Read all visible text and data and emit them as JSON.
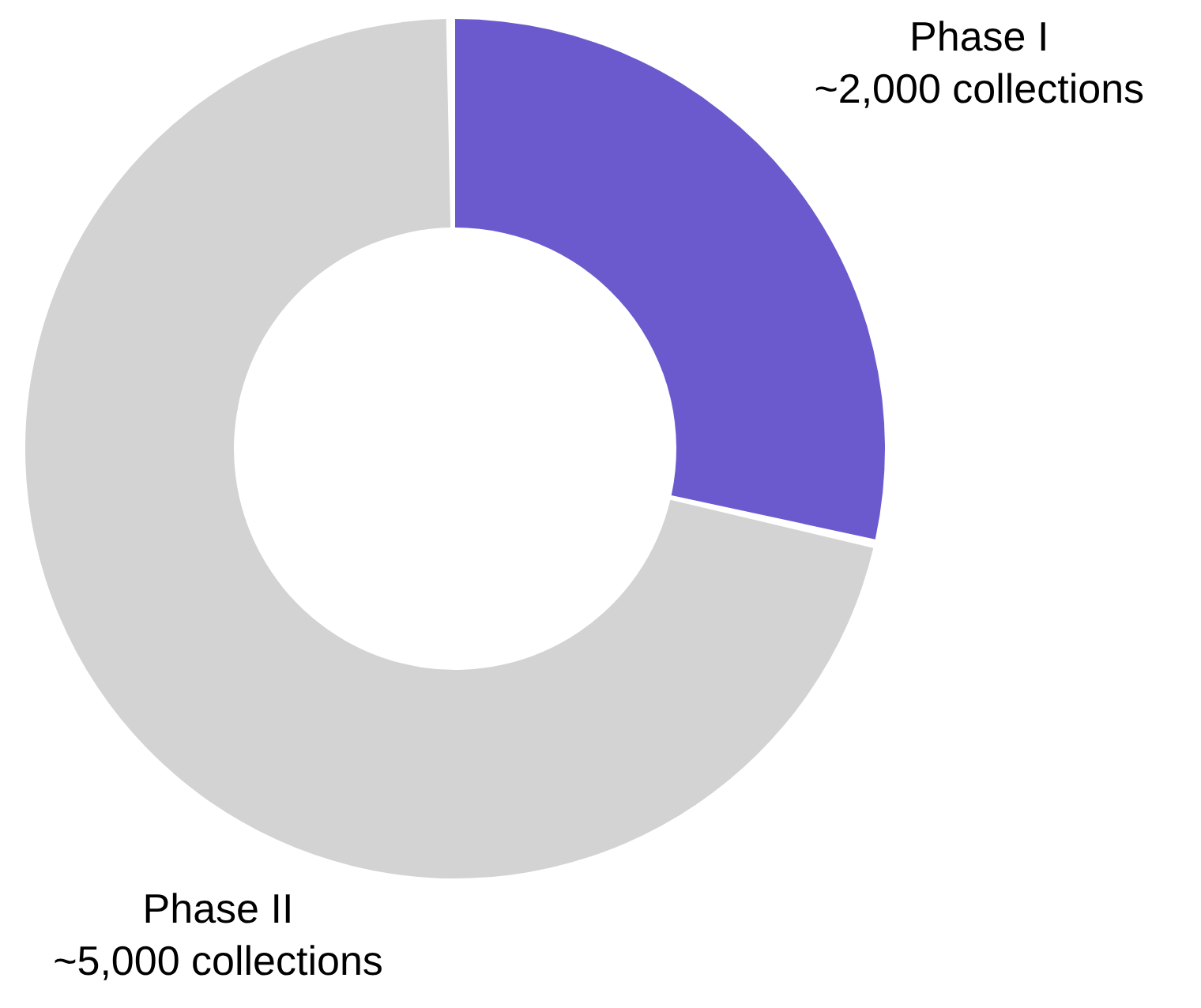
{
  "chart_data": {
    "type": "donut",
    "categories": [
      "Phase I",
      "Phase II"
    ],
    "values": [
      2000,
      5000
    ],
    "colors": [
      "#6a5acd",
      "#d3d3d3"
    ],
    "value_labels": [
      "~2,000 collections",
      "~5,000 collections"
    ]
  }
}
